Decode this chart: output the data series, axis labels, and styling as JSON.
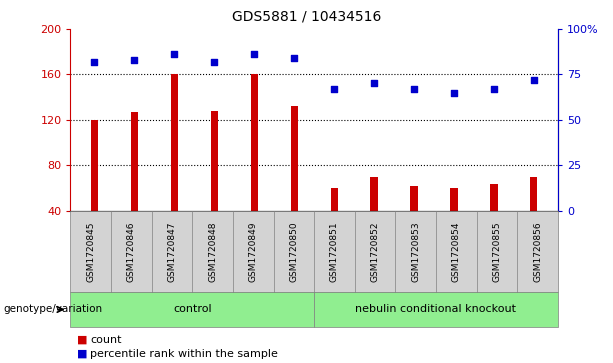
{
  "title": "GDS5881 / 10434516",
  "samples": [
    "GSM1720845",
    "GSM1720846",
    "GSM1720847",
    "GSM1720848",
    "GSM1720849",
    "GSM1720850",
    "GSM1720851",
    "GSM1720852",
    "GSM1720853",
    "GSM1720854",
    "GSM1720855",
    "GSM1720856"
  ],
  "counts": [
    120,
    127,
    160,
    128,
    160,
    132,
    60,
    70,
    62,
    60,
    63,
    70
  ],
  "percentiles": [
    82,
    83,
    86,
    82,
    86,
    84,
    67,
    70,
    67,
    65,
    67,
    72
  ],
  "ylim_left": [
    40,
    200
  ],
  "ylim_right": [
    0,
    100
  ],
  "yticks_left": [
    40,
    80,
    120,
    160,
    200
  ],
  "yticks_right": [
    0,
    25,
    50,
    75,
    100
  ],
  "yticklabels_right": [
    "0",
    "25",
    "50",
    "75",
    "100%"
  ],
  "bar_color": "#cc0000",
  "dot_color": "#0000cc",
  "bar_bottom": 40,
  "groups": [
    {
      "label": "control",
      "start": 0,
      "end": 6,
      "color": "#90ee90"
    },
    {
      "label": "nebulin conditional knockout",
      "start": 6,
      "end": 12,
      "color": "#90ee90"
    }
  ],
  "group_row_label": "genotype/variation",
  "legend_items": [
    {
      "label": "count",
      "color": "#cc0000"
    },
    {
      "label": "percentile rank within the sample",
      "color": "#0000cc"
    }
  ],
  "bg_color": "#ffffff",
  "tick_label_color_left": "#cc0000",
  "tick_label_color_right": "#0000cc",
  "sample_bg": "#d3d3d3",
  "dotted_lines": [
    80,
    120,
    160
  ]
}
